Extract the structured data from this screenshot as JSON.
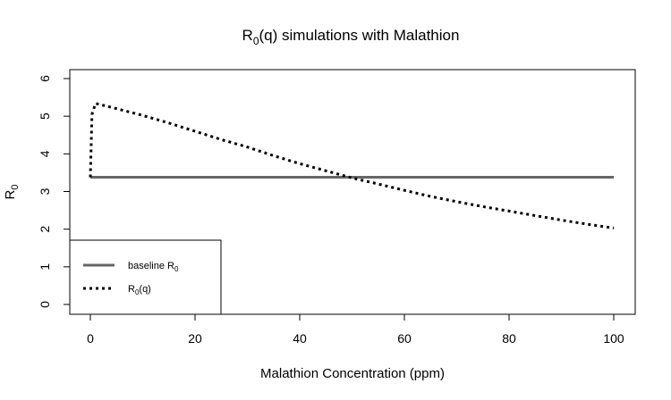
{
  "chart_data": {
    "type": "line",
    "title": {
      "main": "R",
      "sub": "0",
      "rest": "(q) simulations with Malathion"
    },
    "xlabel": "Malathion Concentration (ppm)",
    "ylabel": {
      "main": "R",
      "sub": "0"
    },
    "xlim": [
      0,
      100
    ],
    "ylim": [
      0,
      6
    ],
    "xticks": [
      "0",
      "20",
      "40",
      "60",
      "80",
      "100"
    ],
    "yticks": [
      "0",
      "1",
      "2",
      "3",
      "4",
      "5",
      "6"
    ],
    "grid": false,
    "legend_position": "bottom-left",
    "series": [
      {
        "id": "baseline",
        "legend": {
          "main": "baseline R",
          "sub": "0",
          "rest": ""
        },
        "style": "solid",
        "color": "#666666",
        "x": [
          0,
          100
        ],
        "y": [
          3.38,
          3.38
        ]
      },
      {
        "id": "rq",
        "legend": {
          "main": "R",
          "sub": "0",
          "rest": "(q)"
        },
        "style": "dotted",
        "color": "#000000",
        "x": [
          0,
          0.3,
          1,
          5,
          10,
          15,
          20,
          25,
          30,
          35,
          40,
          45,
          50,
          55,
          60,
          65,
          70,
          75,
          80,
          85,
          90,
          95,
          100
        ],
        "y": [
          3.38,
          5.05,
          5.34,
          5.2,
          5.02,
          4.82,
          4.6,
          4.38,
          4.18,
          3.95,
          3.74,
          3.55,
          3.36,
          3.2,
          3.03,
          2.87,
          2.73,
          2.6,
          2.48,
          2.36,
          2.24,
          2.13,
          2.03
        ]
      }
    ]
  }
}
